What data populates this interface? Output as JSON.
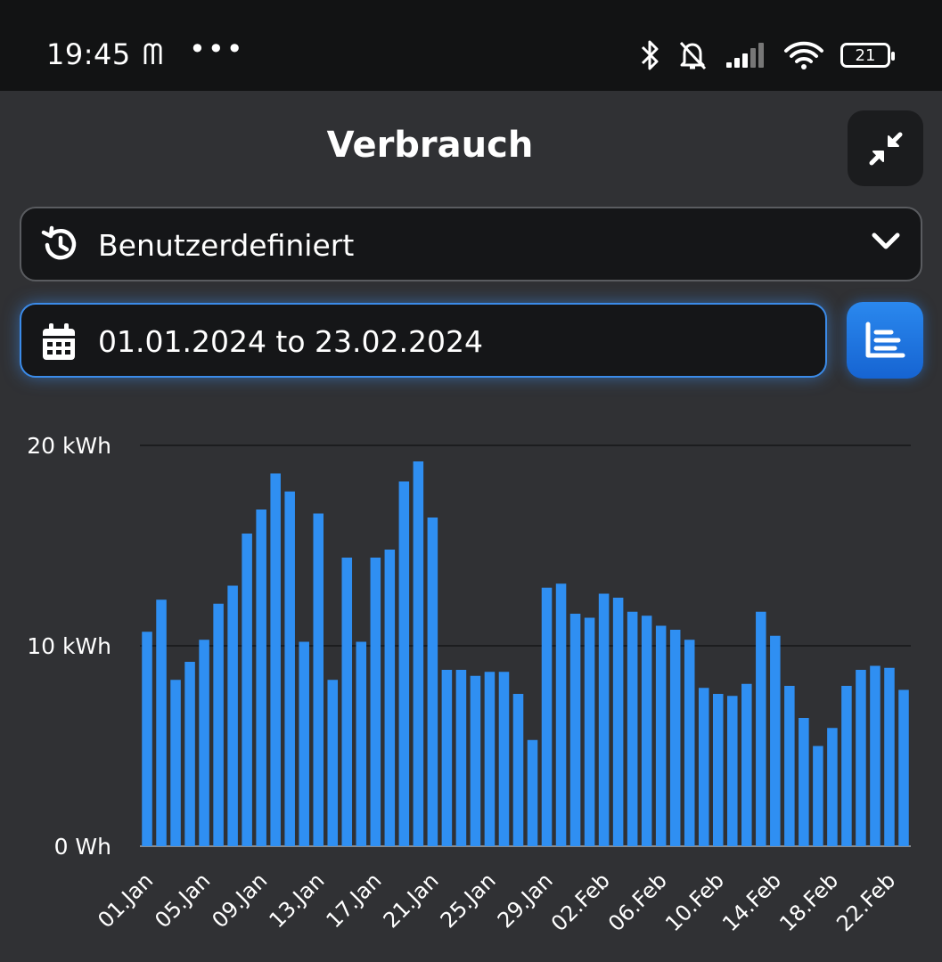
{
  "status_bar": {
    "time": "19:45",
    "extra_glyph": "ᗰ",
    "dots": "•••",
    "battery": "21",
    "icons": [
      "bluetooth-icon",
      "bell-off-icon",
      "signal-icon",
      "wifi-icon",
      "battery-icon"
    ]
  },
  "header": {
    "title": "Verbrauch"
  },
  "range_select": {
    "value": "Benutzerdefiniert",
    "icon": "history-icon"
  },
  "date_field": {
    "value": "01.01.2024 to 23.02.2024",
    "icon": "calendar-icon"
  },
  "colors": {
    "accent": "#2f8ff2",
    "background": "#303134",
    "statusbar": "#121314"
  },
  "chart_data": {
    "type": "bar",
    "ylabel_ticks": [
      "0 Wh",
      "10 kWh",
      "20 kWh"
    ],
    "ylim": [
      0,
      20
    ],
    "unit": "kWh",
    "grid": true,
    "categories": [
      "01.Jan",
      "02.Jan",
      "03.Jan",
      "04.Jan",
      "05.Jan",
      "06.Jan",
      "07.Jan",
      "08.Jan",
      "09.Jan",
      "10.Jan",
      "11.Jan",
      "12.Jan",
      "13.Jan",
      "14.Jan",
      "15.Jan",
      "16.Jan",
      "17.Jan",
      "18.Jan",
      "19.Jan",
      "20.Jan",
      "21.Jan",
      "22.Jan",
      "23.Jan",
      "24.Jan",
      "25.Jan",
      "26.Jan",
      "27.Jan",
      "28.Jan",
      "29.Jan",
      "30.Jan",
      "31.Jan",
      "01.Feb",
      "02.Feb",
      "03.Feb",
      "04.Feb",
      "05.Feb",
      "06.Feb",
      "07.Feb",
      "08.Feb",
      "09.Feb",
      "10.Feb",
      "11.Feb",
      "12.Feb",
      "13.Feb",
      "14.Feb",
      "15.Feb",
      "16.Feb",
      "17.Feb",
      "18.Feb",
      "19.Feb",
      "20.Feb",
      "21.Feb",
      "22.Feb",
      "23.Feb"
    ],
    "x_tick_labels": [
      "01.Jan",
      "05.Jan",
      "09.Jan",
      "13.Jan",
      "17.Jan",
      "21.Jan",
      "25.Jan",
      "29.Jan",
      "02.Feb",
      "06.Feb",
      "10.Feb",
      "14.Feb",
      "18.Feb",
      "22.Feb"
    ],
    "values": [
      10.7,
      12.3,
      8.3,
      9.2,
      10.3,
      12.1,
      13.0,
      15.6,
      16.8,
      18.6,
      17.7,
      10.2,
      16.6,
      8.3,
      14.4,
      10.2,
      14.4,
      14.8,
      18.2,
      19.2,
      16.4,
      8.8,
      8.8,
      8.5,
      8.7,
      8.7,
      7.6,
      5.3,
      12.9,
      13.1,
      11.6,
      11.4,
      12.6,
      12.4,
      11.7,
      11.5,
      11.0,
      10.8,
      10.3,
      7.9,
      7.6,
      7.5,
      8.1,
      11.7,
      10.5,
      8.0,
      6.4,
      5.0,
      5.9,
      8.0,
      8.8,
      9.0,
      8.9,
      7.8
    ],
    "series": [
      {
        "values_ref": "values"
      }
    ]
  }
}
